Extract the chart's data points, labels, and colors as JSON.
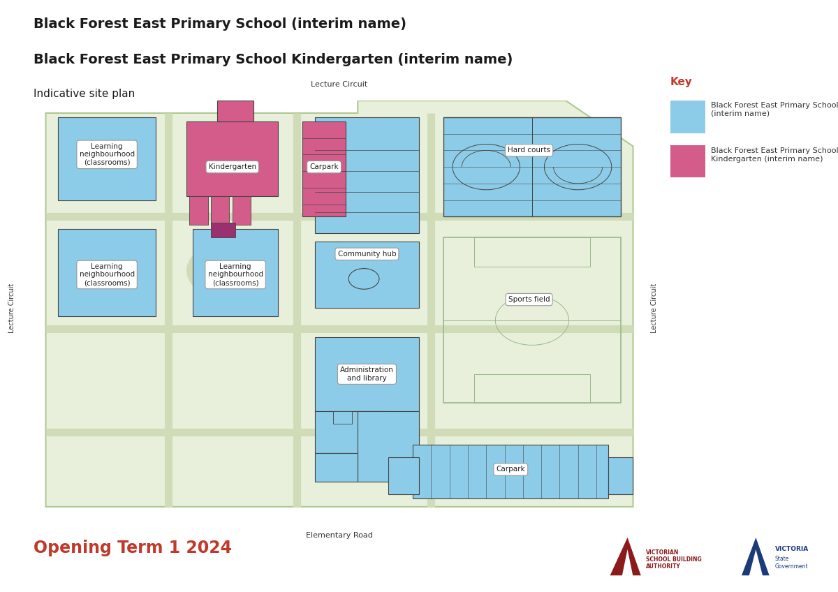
{
  "title_line1": "Black Forest East Primary School (interim name)",
  "title_line2": "Black Forest East Primary School Kindergarten (interim name)",
  "subtitle": "Indicative site plan",
  "opening_text": "Opening Term 1 2024",
  "key_title": "Key",
  "road_top": "Lecture Circuit",
  "road_bottom": "Elementary Road",
  "road_left": "Lecture Circuit",
  "road_right": "Lecture Circuit",
  "bg_color": "#FFFFFF",
  "site_bg": "#E8F0DC",
  "path_color": "#D0DCB8",
  "blue_color": "#8DCCE8",
  "pink_color": "#D45C8A",
  "dark_outline": "#444444",
  "sports_outline": "#9ab888",
  "title_color": "#1a1a1a",
  "opening_color": "#C0392B",
  "key_title_color": "#C0392B",
  "label_bg": "#FFFFFF",
  "label_edge": "#999999"
}
